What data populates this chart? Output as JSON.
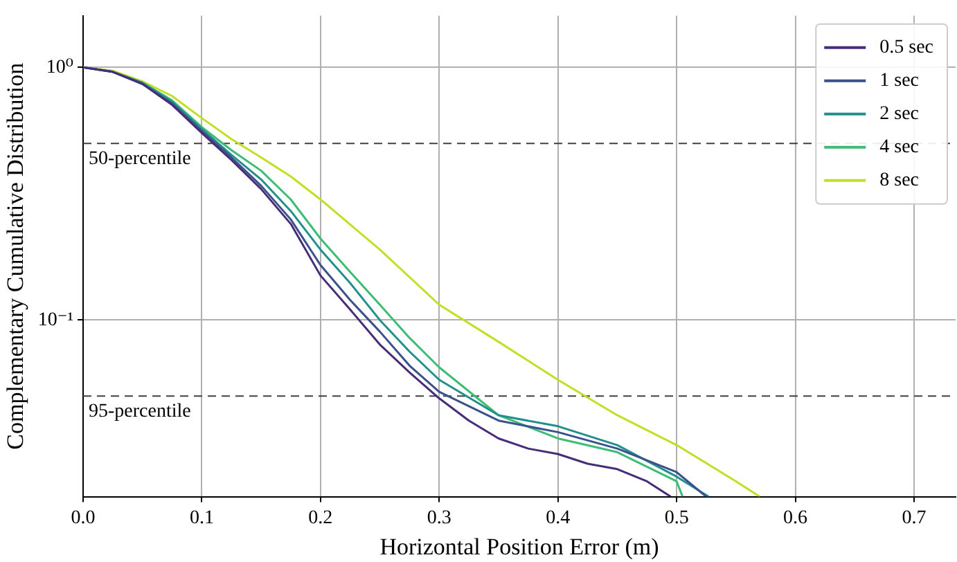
{
  "chart_data": {
    "type": "line",
    "xlabel": "Horizontal Position Error (m)",
    "ylabel": "Complementary Cumulative Distribution",
    "log": "y",
    "grid": true,
    "legend": "top right",
    "marker": "none",
    "line_style": "solid",
    "xlim": [
      0,
      0.735
    ],
    "xticks": [
      {
        "value": 0,
        "label": "0.0"
      },
      0.1,
      0.2,
      0.3,
      0.4,
      0.5,
      0.6,
      0.7
    ],
    "ylim": [
      0.02,
      1.6
    ],
    "yticks": [
      {
        "value": 0.1,
        "label": "10⁻¹"
      },
      {
        "value": 1,
        "label": "10⁰"
      }
    ],
    "ref_lines": [
      {
        "axis": "y",
        "value": 0.5,
        "label": "50-percentile",
        "color": "#404040",
        "line_style": "dashed"
      },
      {
        "axis": "y",
        "value": 0.05,
        "label": "95-percentile",
        "color": "#404040",
        "line_style": "dashed"
      }
    ],
    "series": [
      {
        "name": "0.5 sec",
        "color": "#472c7a",
        "x": [
          0,
          0.025,
          0.05,
          0.075,
          0.1,
          0.125,
          0.15,
          0.175,
          0.2,
          0.225,
          0.25,
          0.275,
          0.3,
          0.325,
          0.35,
          0.375,
          0.4,
          0.425,
          0.45,
          0.475,
          0.495
        ],
        "values": [
          1,
          0.96,
          0.86,
          0.71,
          0.55,
          0.43,
          0.33,
          0.24,
          0.15,
          0.11,
          0.08,
          0.062,
          0.049,
          0.04,
          0.034,
          0.031,
          0.0295,
          0.027,
          0.0257,
          0.023,
          0.02
        ]
      },
      {
        "name": "1 sec",
        "color": "#3b518b",
        "x": [
          0,
          0.025,
          0.05,
          0.075,
          0.1,
          0.125,
          0.15,
          0.175,
          0.2,
          0.225,
          0.25,
          0.275,
          0.3,
          0.35,
          0.4,
          0.45,
          0.5,
          0.525
        ],
        "values": [
          1,
          0.96,
          0.86,
          0.72,
          0.56,
          0.44,
          0.34,
          0.25,
          0.165,
          0.12,
          0.09,
          0.066,
          0.052,
          0.04,
          0.036,
          0.031,
          0.025,
          0.02
        ]
      },
      {
        "name": "2 sec",
        "color": "#21908d",
        "x": [
          0,
          0.025,
          0.05,
          0.075,
          0.1,
          0.125,
          0.15,
          0.175,
          0.2,
          0.225,
          0.25,
          0.275,
          0.3,
          0.35,
          0.4,
          0.45,
          0.5,
          0.527
        ],
        "values": [
          1,
          0.96,
          0.87,
          0.73,
          0.57,
          0.45,
          0.36,
          0.27,
          0.19,
          0.14,
          0.1,
          0.075,
          0.058,
          0.042,
          0.038,
          0.032,
          0.024,
          0.02
        ]
      },
      {
        "name": "4 sec",
        "color": "#3dbc74",
        "x": [
          0,
          0.025,
          0.05,
          0.075,
          0.1,
          0.125,
          0.15,
          0.175,
          0.2,
          0.225,
          0.25,
          0.275,
          0.3,
          0.35,
          0.4,
          0.45,
          0.5,
          0.505
        ],
        "values": [
          1,
          0.96,
          0.87,
          0.74,
          0.58,
          0.47,
          0.39,
          0.3,
          0.21,
          0.155,
          0.115,
          0.085,
          0.065,
          0.042,
          0.034,
          0.03,
          0.023,
          0.02
        ]
      },
      {
        "name": "8 sec",
        "color": "#c0df25",
        "x": [
          0,
          0.025,
          0.05,
          0.075,
          0.1,
          0.125,
          0.15,
          0.175,
          0.2,
          0.25,
          0.3,
          0.35,
          0.4,
          0.45,
          0.5,
          0.55,
          0.57
        ],
        "values": [
          1,
          0.97,
          0.88,
          0.77,
          0.63,
          0.52,
          0.44,
          0.37,
          0.3,
          0.19,
          0.115,
          0.082,
          0.058,
          0.042,
          0.032,
          0.023,
          0.02
        ]
      }
    ]
  }
}
